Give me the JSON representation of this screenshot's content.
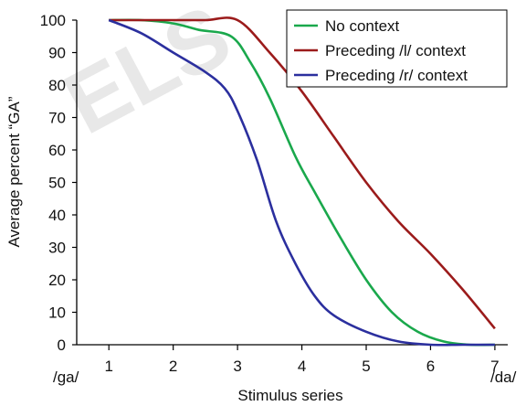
{
  "chart_data": {
    "type": "line",
    "watermark": "ELS",
    "xlabel": "Stimulus series",
    "ylabel": "Average percent “GA”",
    "x_end_labels": {
      "left": "/ga/",
      "right": "/da/"
    },
    "xlim": [
      0.5,
      7.2
    ],
    "ylim": [
      0,
      100
    ],
    "x_ticks": [
      1,
      2,
      3,
      4,
      5,
      6,
      7
    ],
    "y_ticks": [
      0,
      10,
      20,
      30,
      40,
      50,
      60,
      70,
      80,
      90,
      100
    ],
    "grid": false,
    "legend_position": "top-right",
    "series": [
      {
        "name": "No context",
        "color": "#1aa84c",
        "x": [
          1.0,
          1.5,
          2.0,
          2.4,
          2.9,
          3.2,
          3.5,
          3.9,
          4.2,
          4.6,
          5.0,
          5.4,
          5.8,
          6.2,
          6.6,
          7.0
        ],
        "y": [
          100,
          100,
          99,
          97,
          95,
          87,
          76,
          58,
          47,
          33,
          20,
          10,
          4,
          1,
          0,
          0
        ]
      },
      {
        "name": "Preceding /l/ context",
        "color": "#9b1b1b",
        "x": [
          1.0,
          1.5,
          2.0,
          2.5,
          3.0,
          3.5,
          4.0,
          4.5,
          5.0,
          5.5,
          6.0,
          6.5,
          7.0
        ],
        "y": [
          100,
          100,
          100,
          100,
          100,
          90,
          78,
          64,
          50,
          38,
          28,
          17,
          5
        ]
      },
      {
        "name": "Preceding /r/ context",
        "color": "#2b2f9e",
        "x": [
          1.0,
          1.5,
          2.0,
          2.5,
          2.8,
          3.0,
          3.3,
          3.6,
          3.9,
          4.2,
          4.5,
          5.0,
          5.5,
          6.0,
          6.5,
          7.0
        ],
        "y": [
          100,
          96,
          90,
          84,
          79,
          72,
          57,
          38,
          25,
          15,
          9,
          4,
          1,
          0,
          0,
          0
        ]
      }
    ]
  }
}
